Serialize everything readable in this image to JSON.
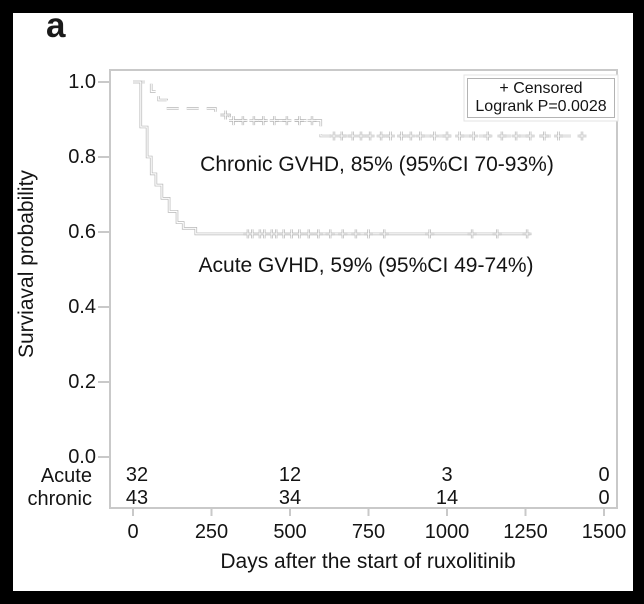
{
  "panel_label": "a",
  "legend": {
    "censored_label": "+ Censored",
    "logrank_label": "Logrank P=0.0028"
  },
  "annotations": {
    "chronic": "Chronic GVHD, 85% (95%CI 70-93%)",
    "acute": "Acute GVHD, 59% (95%CI 49-74%)"
  },
  "axes": {
    "y_label": "Surviaval probability",
    "x_label": "Days after the start of ruxolitinib",
    "y_ticks": [
      "1.0",
      "0.8",
      "0.6",
      "0.4",
      "0.2",
      "0.0"
    ],
    "x_ticks": [
      "0",
      "250",
      "500",
      "750",
      "1000",
      "1250",
      "1500"
    ]
  },
  "colors": {
    "curve_gray": "#b7b7b7",
    "curve_core": "#ffffff",
    "axis_gray": "#c9c9c9",
    "text": "#141414",
    "frame": "#000000",
    "background": "#ffffff"
  },
  "chart_data": {
    "type": "line",
    "subtype": "kaplan-meier-step",
    "title": "",
    "xlabel": "Days after the start of ruxolitinib",
    "ylabel": "Surviaval probability",
    "xlim": [
      0,
      1500
    ],
    "ylim": [
      0.0,
      1.0
    ],
    "grid": false,
    "legend_position": "top-right",
    "logrank_p": 0.0028,
    "series": [
      {
        "name": "Chronic GVHD",
        "style": "dashed",
        "estimate_label": "85% (95%CI 70-93%)",
        "survival_estimate": 0.85,
        "ci": [
          0.7,
          0.93
        ],
        "steps": [
          [
            0,
            1.0
          ],
          [
            58,
            1.0
          ],
          [
            58,
            0.975
          ],
          [
            82,
            0.975
          ],
          [
            82,
            0.952
          ],
          [
            107,
            0.952
          ],
          [
            107,
            0.93
          ],
          [
            262,
            0.93
          ],
          [
            262,
            0.912
          ],
          [
            308,
            0.912
          ],
          [
            308,
            0.897
          ],
          [
            598,
            0.897
          ],
          [
            598,
            0.856
          ],
          [
            1430,
            0.856
          ]
        ],
        "censor_days": [
          295,
          320,
          350,
          385,
          415,
          450,
          490,
          530,
          570,
          640,
          665,
          700,
          726,
          755,
          790,
          820,
          855,
          885,
          915,
          960,
          1000,
          1040,
          1085,
          1130,
          1175,
          1220,
          1265,
          1310,
          1355,
          1430
        ]
      },
      {
        "name": "Acute GVHD",
        "style": "solid",
        "estimate_label": "59% (95%CI 49-74%)",
        "survival_estimate": 0.59,
        "ci": [
          0.49,
          0.74
        ],
        "steps": [
          [
            0,
            1.0
          ],
          [
            25,
            1.0
          ],
          [
            25,
            0.88
          ],
          [
            45,
            0.88
          ],
          [
            45,
            0.8
          ],
          [
            58,
            0.8
          ],
          [
            58,
            0.755
          ],
          [
            73,
            0.755
          ],
          [
            73,
            0.725
          ],
          [
            92,
            0.725
          ],
          [
            92,
            0.69
          ],
          [
            115,
            0.69
          ],
          [
            115,
            0.655
          ],
          [
            140,
            0.655
          ],
          [
            140,
            0.625
          ],
          [
            160,
            0.625
          ],
          [
            160,
            0.61
          ],
          [
            200,
            0.61
          ],
          [
            200,
            0.595
          ],
          [
            1265,
            0.595
          ]
        ],
        "censor_days": [
          366,
          380,
          404,
          418,
          442,
          456,
          480,
          505,
          530,
          560,
          590,
          628,
          668,
          710,
          750,
          800,
          945,
          1080,
          1160,
          1255
        ]
      }
    ],
    "at_risk": {
      "column_days": [
        0,
        500,
        1000,
        1500
      ],
      "rows": [
        {
          "label": "Acute",
          "counts": [
            "32",
            "12",
            "3",
            "0"
          ]
        },
        {
          "label": "chronic",
          "counts": [
            "43",
            "34",
            "14",
            "0"
          ]
        }
      ]
    }
  }
}
